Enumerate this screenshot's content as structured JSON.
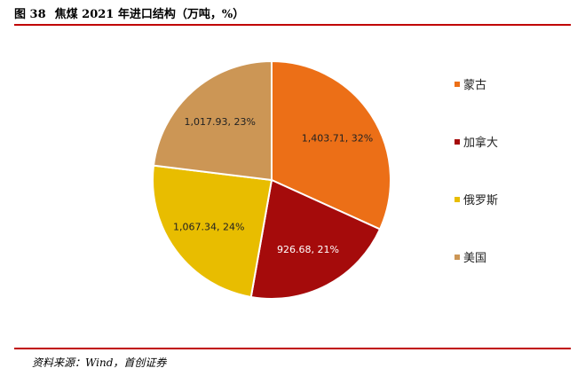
{
  "header": {
    "figure_number": "图 38",
    "title": "焦煤 2021 年进口结构（万吨，%）"
  },
  "footer": {
    "source": "资料来源：Wind，首创证券"
  },
  "chart_data": {
    "type": "pie",
    "title": "焦煤 2021 年进口结构（万吨，%）",
    "series": [
      {
        "values": [
          1403.71,
          926.68,
          1067.34,
          1017.93
        ]
      }
    ],
    "categories": [
      "蒙古",
      "加拿大",
      "俄罗斯",
      "美国"
    ],
    "slices": [
      {
        "label": "蒙古",
        "value": 1403.71,
        "percent": 32,
        "display": "1,403.71, 32%",
        "color": "#ec6f17",
        "label_color": "#222222"
      },
      {
        "label": "加拿大",
        "value": 926.68,
        "percent": 21,
        "display": "926.68, 21%",
        "color": "#a50b0b",
        "label_color": "#ffffff"
      },
      {
        "label": "俄罗斯",
        "value": 1067.34,
        "percent": 24,
        "display": "1,067.34, 24%",
        "color": "#e8bd00",
        "label_color": "#222222"
      },
      {
        "label": "美国",
        "value": 1017.93,
        "percent": 23,
        "display": "1,017.93, 23%",
        "color": "#cc9655",
        "label_color": "#222222"
      }
    ],
    "start_angle": "12 o'clock",
    "direction": "clockwise",
    "legend_position": "right"
  }
}
